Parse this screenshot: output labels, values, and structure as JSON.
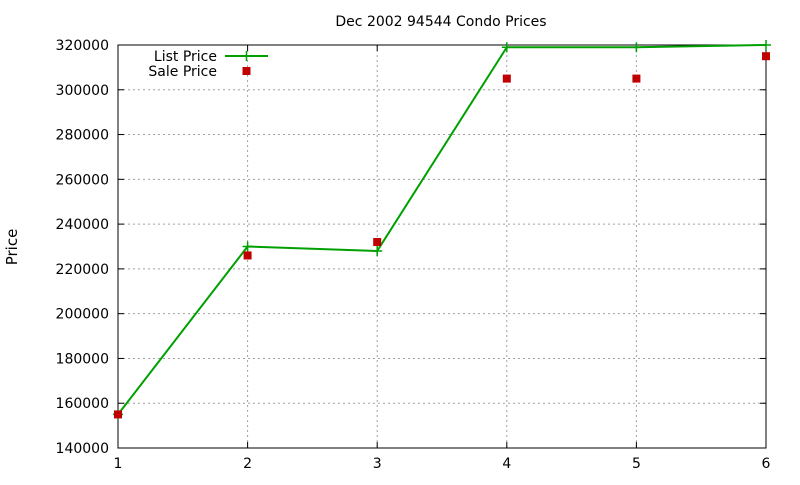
{
  "chart_data": {
    "type": "line",
    "title": "Dec 2002 94544 Condo Prices",
    "xlabel": "",
    "ylabel": "Price",
    "x": [
      1,
      2,
      3,
      4,
      5,
      6
    ],
    "xlim": [
      1,
      6
    ],
    "ylim": [
      140000,
      320000
    ],
    "yticks": [
      140000,
      160000,
      180000,
      200000,
      220000,
      240000,
      260000,
      280000,
      300000,
      320000
    ],
    "xticks": [
      1,
      2,
      3,
      4,
      5,
      6
    ],
    "grid": true,
    "legend_position": "top-left",
    "series": [
      {
        "name": "List Price",
        "style": "line-with-plus-markers",
        "color": "#00a000",
        "values": [
          155000,
          230000,
          228000,
          319000,
          319000,
          320000
        ]
      },
      {
        "name": "Sale Price",
        "style": "square-points",
        "color": "#c00000",
        "values": [
          155000,
          226000,
          232000,
          305000,
          305000,
          315000
        ]
      }
    ]
  }
}
